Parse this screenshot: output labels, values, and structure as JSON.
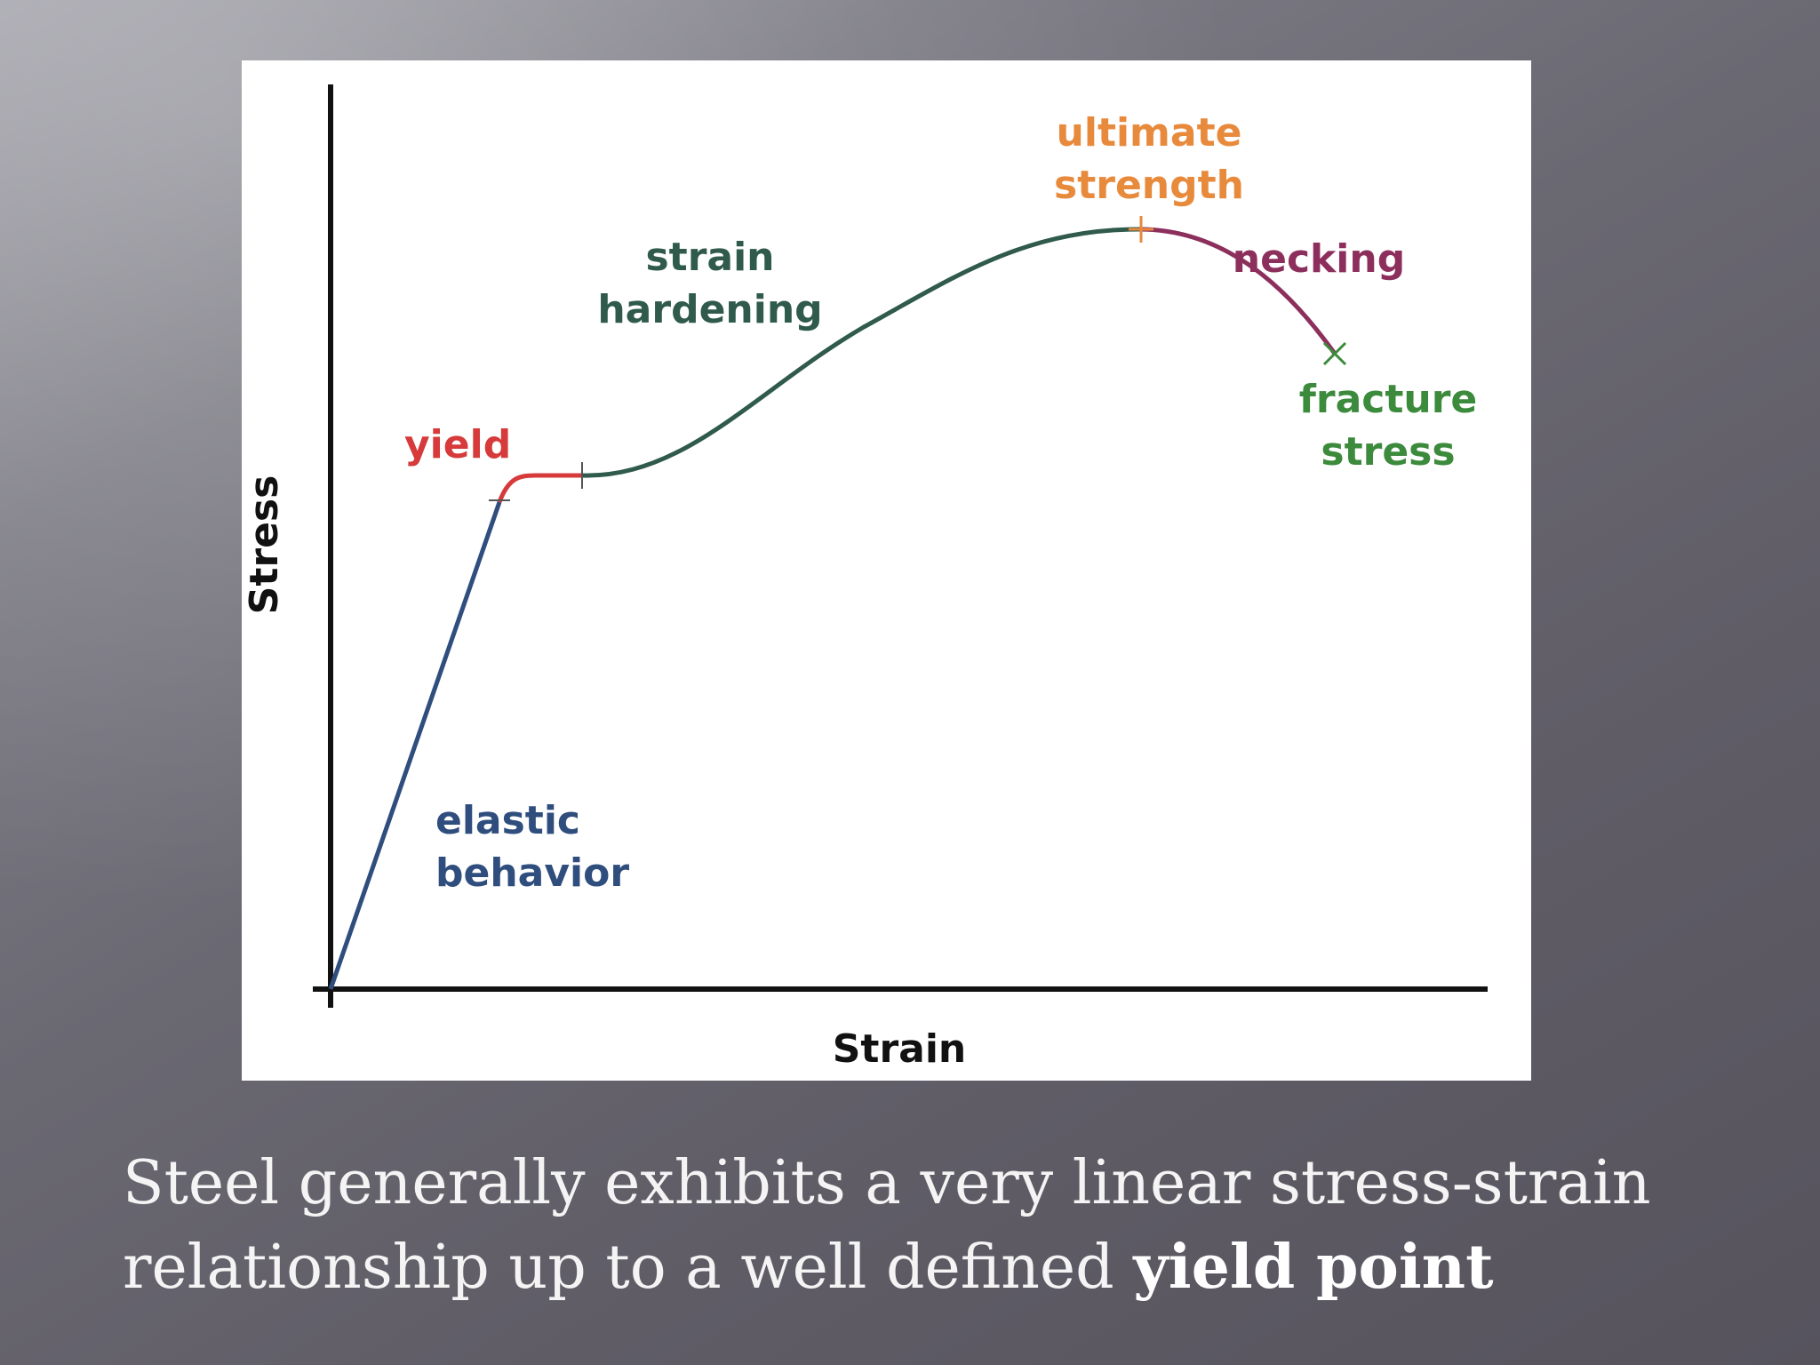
{
  "diagram": {
    "axis_y_label": "Stress",
    "axis_x_label": "Strain",
    "regions": {
      "elastic": [
        "elastic",
        "behavior"
      ],
      "yield": "yield",
      "strain_hardening": [
        "strain",
        "hardening"
      ],
      "ultimate_strength": [
        "ultimate",
        "strength"
      ],
      "necking": "necking",
      "fracture_stress": [
        "fracture",
        "stress"
      ]
    },
    "colors": {
      "elastic": "#2f4e7e",
      "yield": "#d63a3a",
      "strain_hardening": "#2f5a4c",
      "ultimate_strength": "#e88a3c",
      "necking": "#8d2f5c",
      "fracture_stress": "#3c8a3c",
      "axes": "#111111"
    }
  },
  "caption": {
    "line1": "Steel generally exhibits a very linear stress-strain",
    "line2_prefix": "relationship up to a well defined ",
    "line2_bold": "yield point"
  }
}
